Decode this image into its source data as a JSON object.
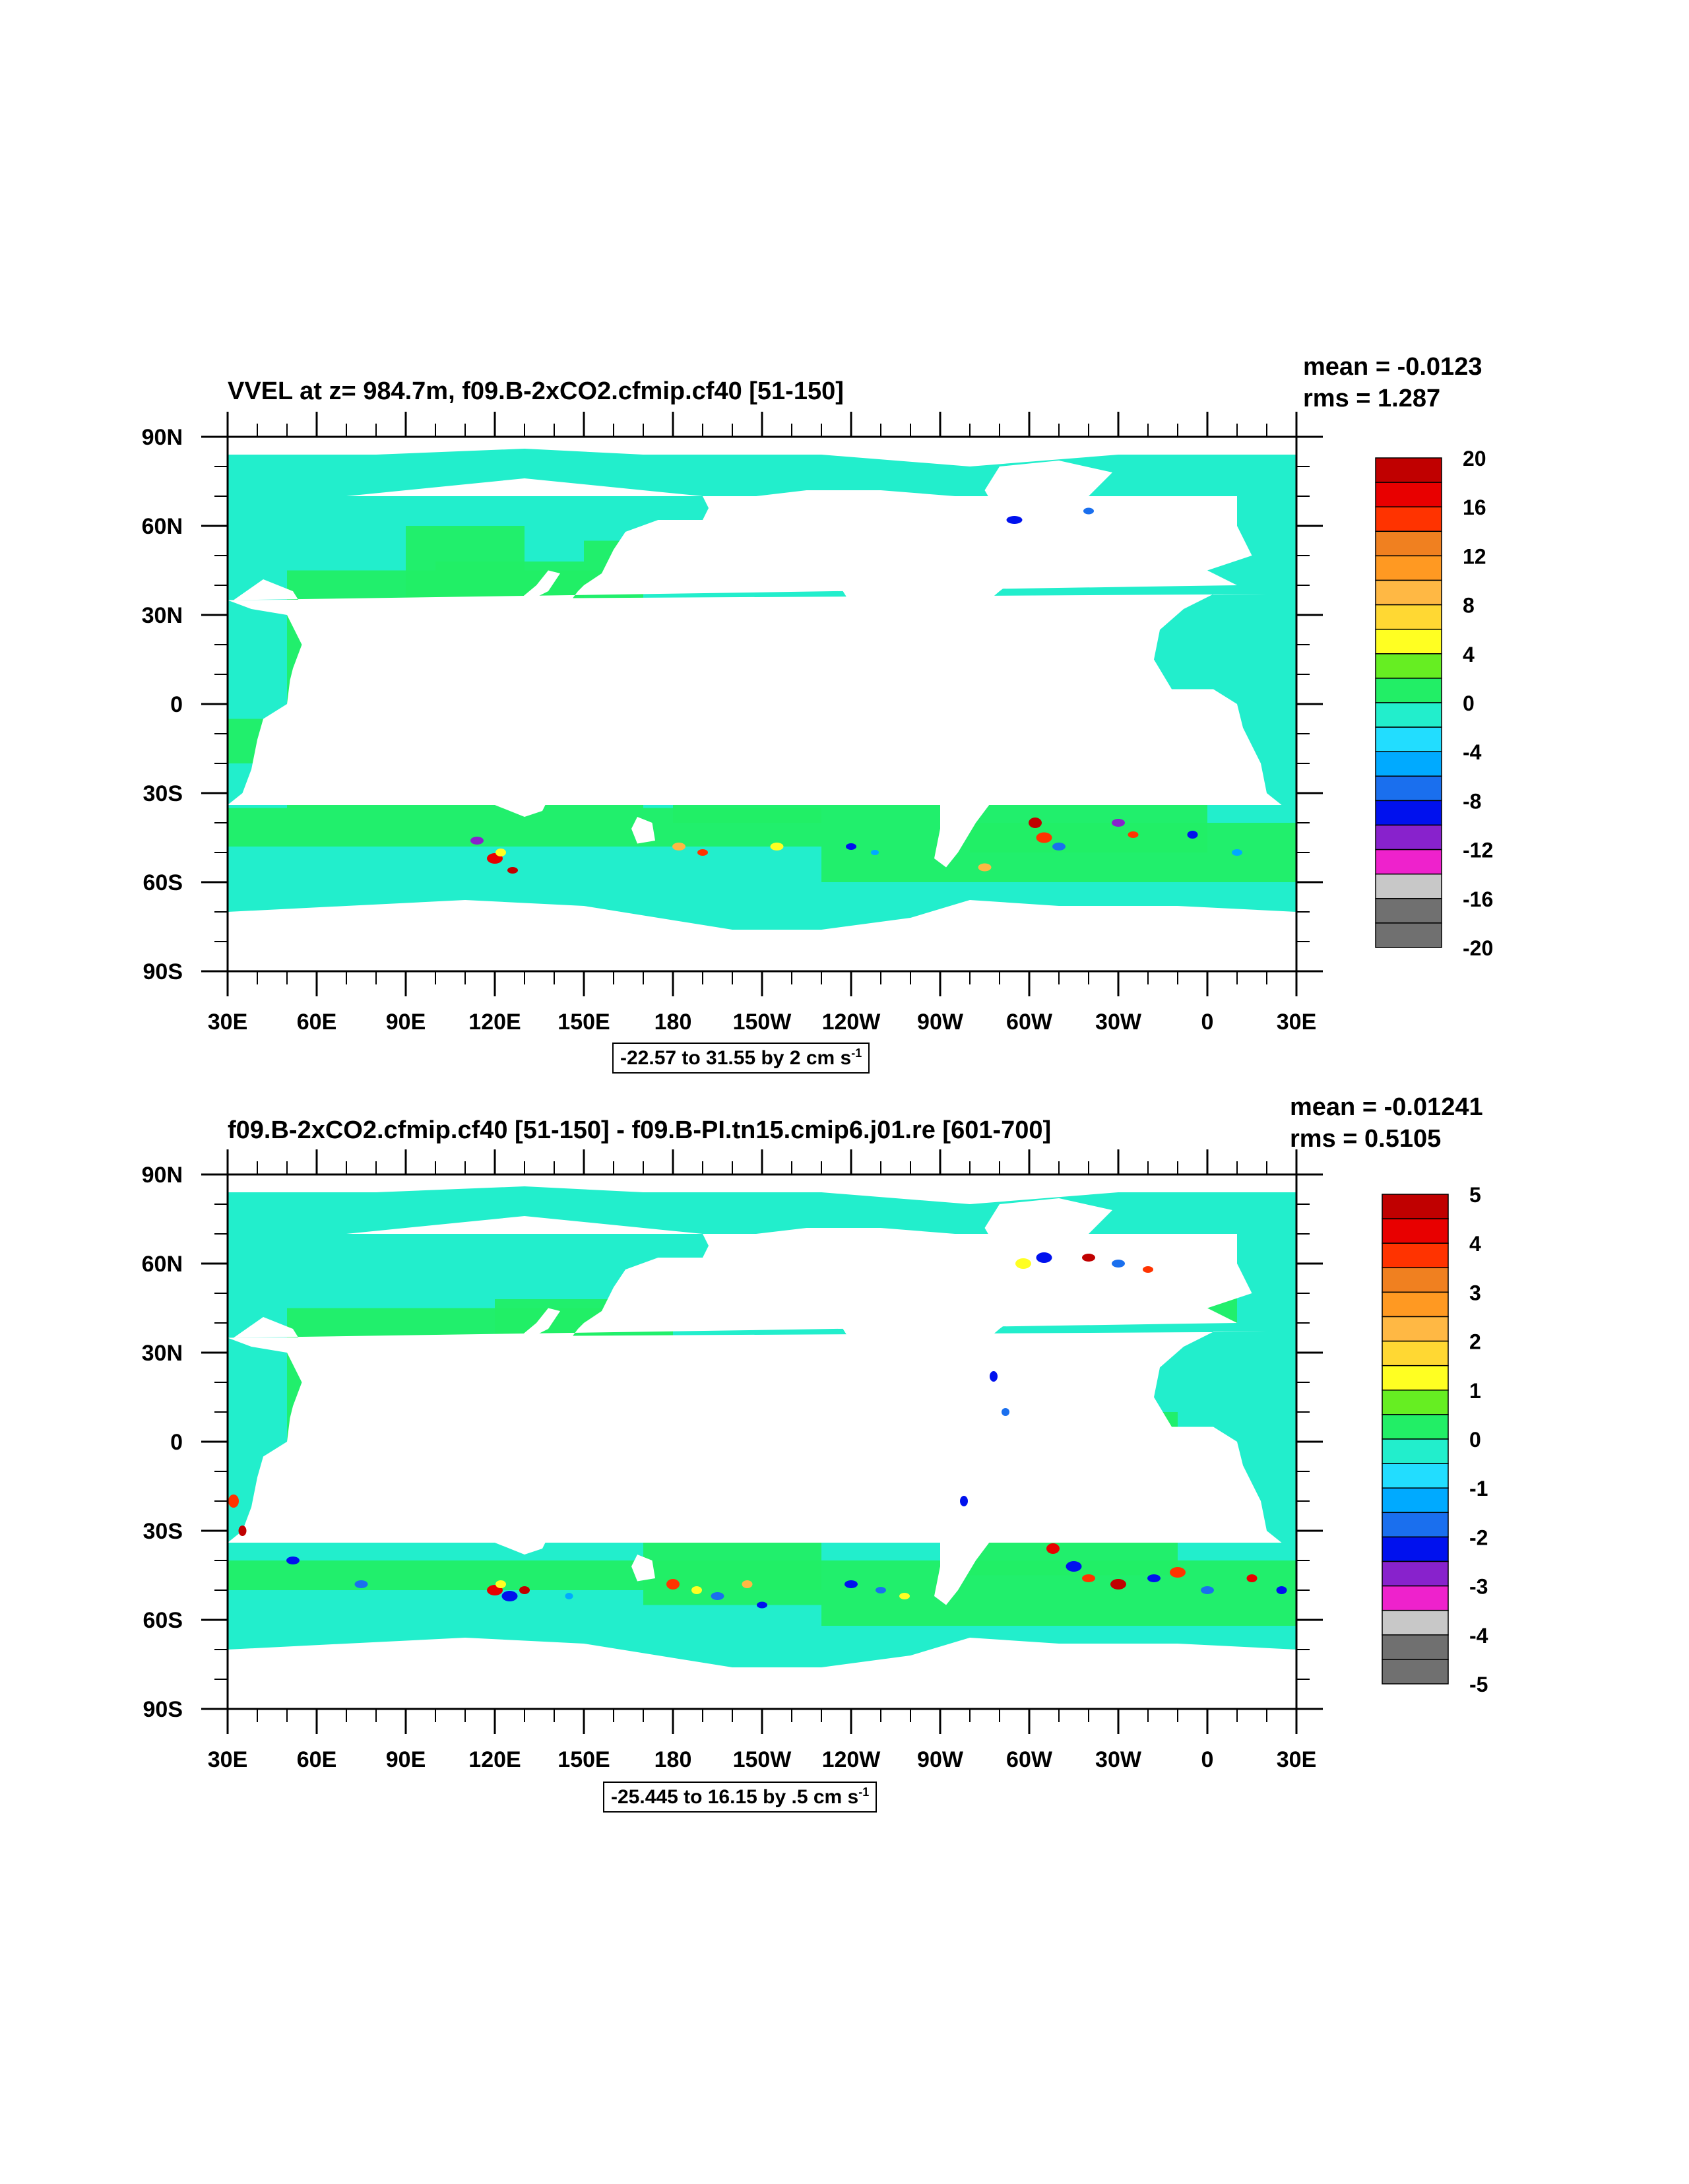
{
  "panels": [
    {
      "title": "VVEL at z= 984.7m, f09.B-2xCO2.cfmip.cf40 [51-150]",
      "mean": "mean = -0.0123",
      "rms": "rms = 1.287",
      "range_text": "-22.57 to 31.55 by 2 cm s",
      "range_unit_sup": "-1",
      "colorbar_labels": [
        "20",
        "16",
        "12",
        "8",
        "4",
        "0",
        "-4",
        "-8",
        "-12",
        "-16",
        "-20"
      ]
    },
    {
      "title": "f09.B-2xCO2.cfmip.cf40 [51-150] - f09.B-PI.tn15.cmip6.j01.re [601-700]",
      "mean": "mean = -0.01241",
      "rms": "rms = 0.5105",
      "range_text": "-25.445 to 16.15 by .5 cm s",
      "range_unit_sup": "-1",
      "colorbar_labels": [
        "5",
        "4",
        "3",
        "2",
        "1",
        "0",
        "-1",
        "-2",
        "-3",
        "-4",
        "-5"
      ]
    }
  ],
  "lat_labels": [
    "90N",
    "60N",
    "30N",
    "0",
    "30S",
    "60S",
    "90S"
  ],
  "lon_labels": [
    "30E",
    "60E",
    "90E",
    "120E",
    "150E",
    "180",
    "150W",
    "120W",
    "90W",
    "60W",
    "30W",
    "0",
    "30E"
  ],
  "colorbar_colors": [
    "#c00000",
    "#e80000",
    "#ff3300",
    "#f08020",
    "#ff9922",
    "#ffb844",
    "#ffd833",
    "#ffff22",
    "#66ee22",
    "#22ee66",
    "#22eecc",
    "#22ddff",
    "#00aaff",
    "#1a6fee",
    "#0011ee",
    "#8822cc",
    "#ee22cc",
    "#c8c8c8",
    "#707070"
  ],
  "colors": {
    "ocean_green": "#22ee66",
    "ocean_cyan": "#22eecc",
    "land": "#ffffff"
  }
}
